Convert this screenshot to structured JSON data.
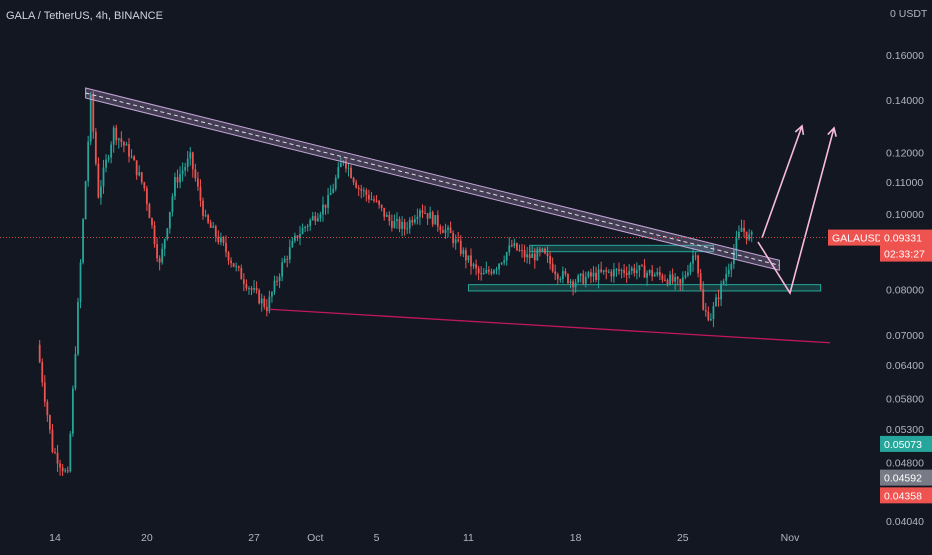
{
  "header": {
    "title": "GALA / TetherUS, 4h, BINANCE"
  },
  "axis": {
    "unit_label": "0 USDT"
  },
  "colors": {
    "background": "#131722",
    "up": "#26a69a",
    "down": "#ef5350",
    "trendline": "#c4a6d8",
    "support": "#26a69a",
    "lower_line": "#c2185b"
  },
  "chart_data": {
    "type": "candlestick",
    "title": "GALA / TetherUS, 4h, BINANCE",
    "symbol": "GALAUSDT",
    "y_scale": "log",
    "ylim": [
      0.0404,
      0.185
    ],
    "y_ticks": [
      "0.16000",
      "0.14000",
      "0.12000",
      "0.11000",
      "0.10000",
      "0.08000",
      "0.07000",
      "0.06400",
      "0.05800",
      "0.05300",
      "0.04800",
      "0.04040"
    ],
    "x_ticks": [
      "14",
      "20",
      "27",
      "Oct",
      "5",
      "11",
      "18",
      "25",
      "Nov"
    ],
    "grid": false,
    "series": [
      {
        "name": "GALAUSDT",
        "keypoints": [
          {
            "x": "Sep 13",
            "y": 0.068
          },
          {
            "x": "Sep 14",
            "y": 0.05
          },
          {
            "x": "Sep 15",
            "y": 0.046
          },
          {
            "x": "Sep 16",
            "y": 0.098
          },
          {
            "x": "Sep 16 12:00",
            "y": 0.14
          },
          {
            "x": "Sep 17",
            "y": 0.106
          },
          {
            "x": "Sep 18",
            "y": 0.128
          },
          {
            "x": "Sep 19",
            "y": 0.12
          },
          {
            "x": "Sep 20",
            "y": 0.108
          },
          {
            "x": "Sep 21",
            "y": 0.086
          },
          {
            "x": "Sep 22",
            "y": 0.11
          },
          {
            "x": "Sep 23",
            "y": 0.118
          },
          {
            "x": "Sep 24",
            "y": 0.098
          },
          {
            "x": "Sep 25",
            "y": 0.092
          },
          {
            "x": "Sep 26",
            "y": 0.085
          },
          {
            "x": "Sep 27",
            "y": 0.08
          },
          {
            "x": "Sep 28",
            "y": 0.076
          },
          {
            "x": "Sep 29",
            "y": 0.086
          },
          {
            "x": "Sep 30",
            "y": 0.094
          },
          {
            "x": "Oct 2",
            "y": 0.104
          },
          {
            "x": "Oct 3",
            "y": 0.118
          },
          {
            "x": "Oct 4",
            "y": 0.108
          },
          {
            "x": "Oct 5",
            "y": 0.104
          },
          {
            "x": "Oct 6",
            "y": 0.098
          },
          {
            "x": "Oct 7",
            "y": 0.096
          },
          {
            "x": "Oct 8",
            "y": 0.102
          },
          {
            "x": "Oct 9",
            "y": 0.098
          },
          {
            "x": "Oct 10",
            "y": 0.094
          },
          {
            "x": "Oct 11",
            "y": 0.088
          },
          {
            "x": "Oct 12",
            "y": 0.083
          },
          {
            "x": "Oct 13",
            "y": 0.086
          },
          {
            "x": "Oct 14",
            "y": 0.091
          },
          {
            "x": "Oct 15",
            "y": 0.088
          },
          {
            "x": "Oct 16",
            "y": 0.089
          },
          {
            "x": "Oct 17",
            "y": 0.084
          },
          {
            "x": "Oct 18",
            "y": 0.082
          },
          {
            "x": "Oct 20",
            "y": 0.084
          },
          {
            "x": "Oct 22",
            "y": 0.085
          },
          {
            "x": "Oct 24",
            "y": 0.083
          },
          {
            "x": "Oct 25",
            "y": 0.081
          },
          {
            "x": "Oct 26",
            "y": 0.09
          },
          {
            "x": "Oct 26 12:00",
            "y": 0.075
          },
          {
            "x": "Oct 27",
            "y": 0.074
          },
          {
            "x": "Oct 28",
            "y": 0.084
          },
          {
            "x": "Oct 29",
            "y": 0.096
          },
          {
            "x": "Oct 29 12:00",
            "y": 0.0933
          }
        ]
      }
    ],
    "annotations": {
      "descending_trendline": [
        {
          "x": "Sep 16",
          "y": 0.143
        },
        {
          "x": "Oct 30",
          "y": 0.087
        }
      ],
      "lower_support_line": [
        {
          "x": "Sep 28",
          "y": 0.0755
        },
        {
          "x": "Nov 1",
          "y": 0.0688
        }
      ],
      "support_zones": [
        {
          "from": "Oct 11",
          "to": "Nov 3",
          "y_low": 0.0797,
          "y_high": 0.0812
        },
        {
          "from": "Oct 15",
          "to": "Oct 27",
          "y_low": 0.0895,
          "y_high": 0.0912
        }
      ]
    },
    "price_tags": [
      {
        "label": "GALAUSDT",
        "value": "0.09331",
        "countdown": "02:33:27",
        "color": "#ef5350"
      },
      {
        "value": "0.05073",
        "color": "#26a69a"
      },
      {
        "value": "0.04592",
        "color": "#787b86"
      },
      {
        "value": "0.04358",
        "color": "#ef5350"
      }
    ]
  }
}
